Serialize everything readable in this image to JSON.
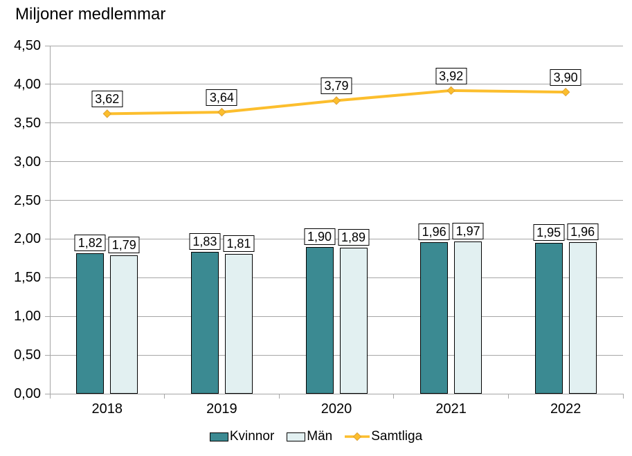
{
  "chart_data": {
    "type": "bar+line",
    "title": "Miljoner medlemmar",
    "categories": [
      "2018",
      "2019",
      "2020",
      "2021",
      "2022"
    ],
    "series": [
      {
        "name": "Kvinnor",
        "type": "bar",
        "color": "#3B8A92",
        "values": [
          1.82,
          1.83,
          1.9,
          1.96,
          1.95
        ],
        "labels": [
          "1,82",
          "1,83",
          "1,90",
          "1,96",
          "1,95"
        ]
      },
      {
        "name": "Män",
        "type": "bar",
        "color": "#E2F0F1",
        "values": [
          1.79,
          1.81,
          1.89,
          1.97,
          1.96
        ],
        "labels": [
          "1,79",
          "1,81",
          "1,89",
          "1,97",
          "1,96"
        ]
      },
      {
        "name": "Samtliga",
        "type": "line",
        "color": "#FCBE2D",
        "values": [
          3.62,
          3.64,
          3.79,
          3.92,
          3.9
        ],
        "labels": [
          "3,62",
          "3,64",
          "3,79",
          "3,92",
          "3,90"
        ]
      }
    ],
    "ylim": [
      0,
      4.5
    ],
    "ytick_step": 0.5,
    "ytick_labels": [
      "0,00",
      "0,50",
      "1,00",
      "1,50",
      "2,00",
      "2,50",
      "3,00",
      "3,50",
      "4,00",
      "4,50"
    ],
    "grid": true,
    "legend_position": "bottom",
    "colors": {
      "grid": "#A6A6A6",
      "axis": "#A6A6A6",
      "data_label_bg": "#FFFFFF",
      "data_label_border": "#000000",
      "text": "#000000",
      "marker_outline": "#DFA232"
    }
  }
}
